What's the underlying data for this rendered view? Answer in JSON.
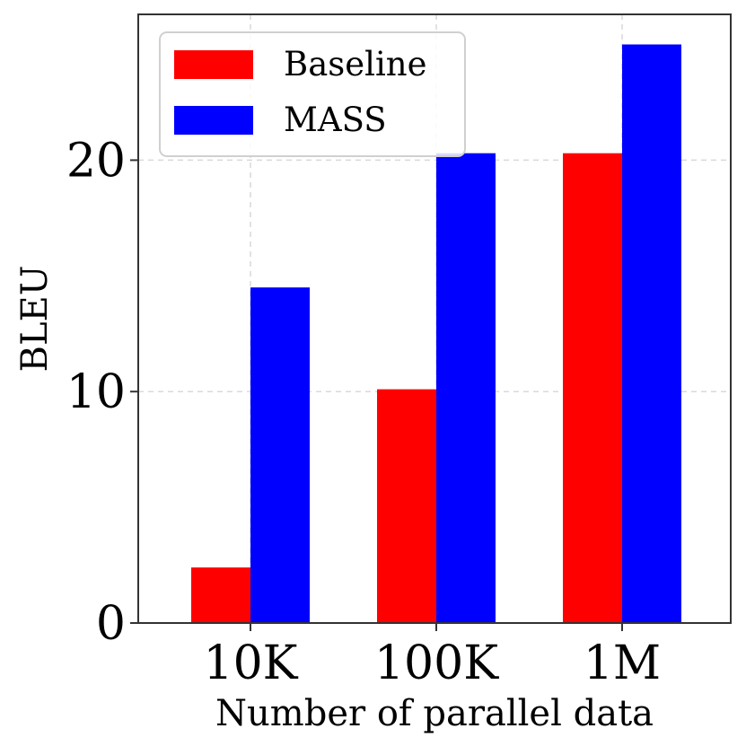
{
  "chart_data": {
    "type": "bar",
    "title": "",
    "xlabel": "Number of parallel data",
    "ylabel": "BLEU",
    "categories": [
      "10K",
      "100K",
      "1M"
    ],
    "series": [
      {
        "name": "Baseline",
        "color": "#ff0000",
        "values": [
          2.4,
          10.1,
          20.3
        ]
      },
      {
        "name": "MASS",
        "color": "#0000ff",
        "values": [
          14.5,
          20.3,
          25.0
        ]
      }
    ],
    "ylim": [
      0,
      26.3
    ],
    "yticks": [
      0,
      10,
      20
    ],
    "ytick_labels": [
      "0",
      "10",
      "20"
    ],
    "grid": true,
    "legend_position": "top-left"
  }
}
